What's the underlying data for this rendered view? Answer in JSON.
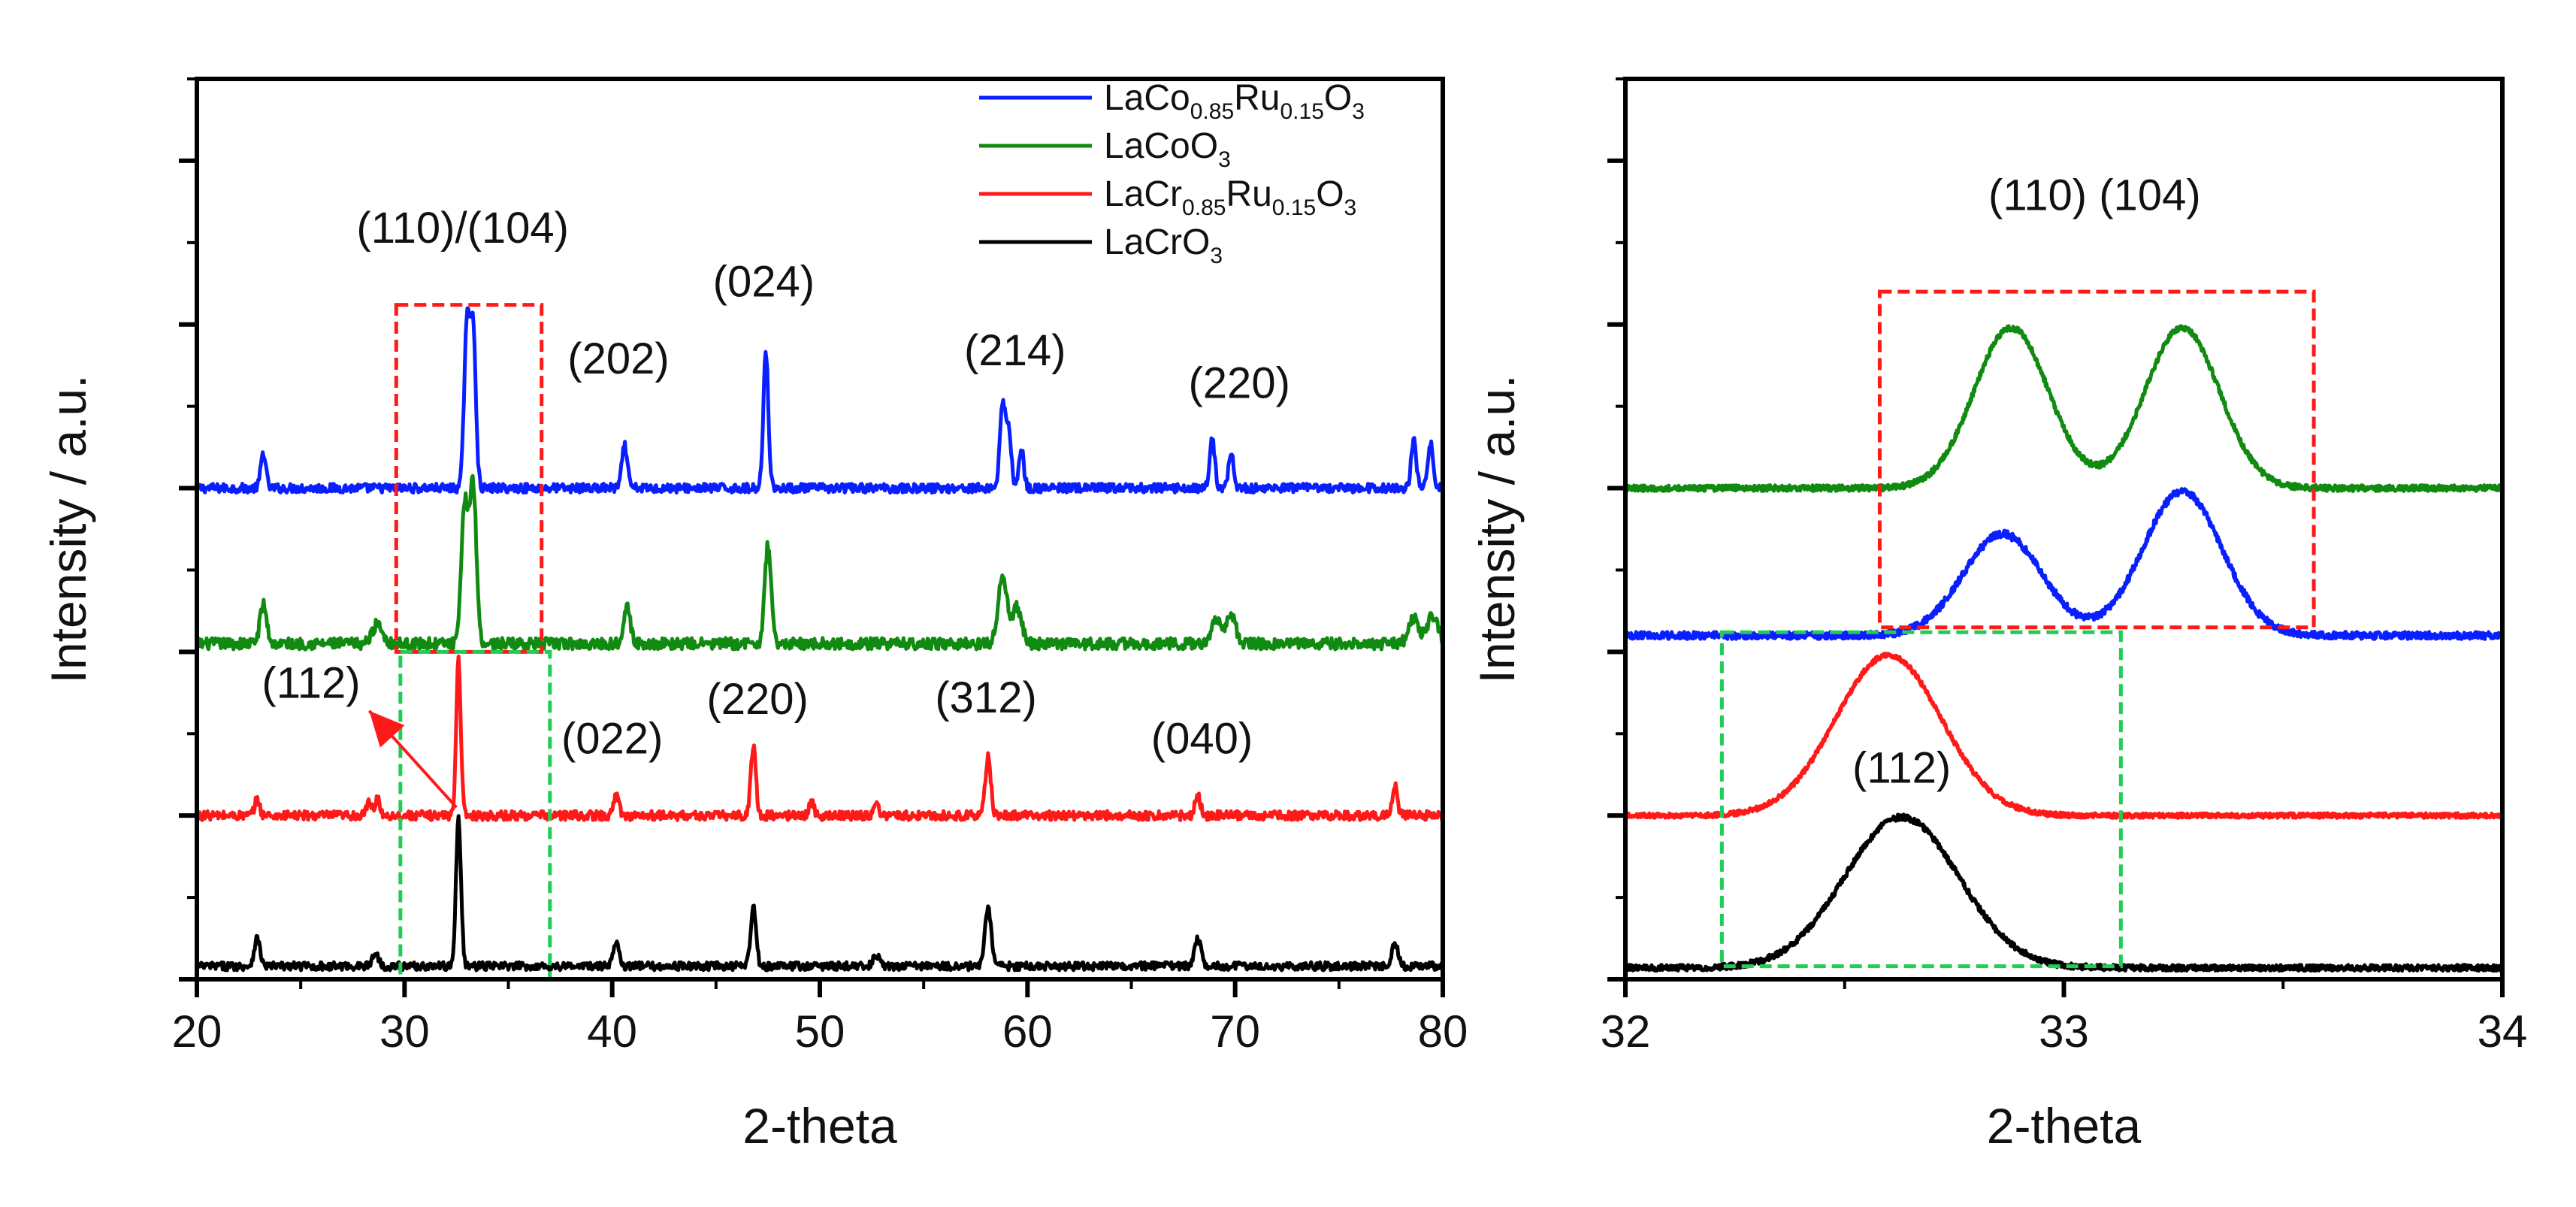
{
  "chart_data": [
    {
      "type": "line",
      "panel": "left",
      "xlabel": "2-theta",
      "ylabel": "Intensity / a.u.",
      "xlim": [
        20,
        80
      ],
      "x_ticks": [
        "20",
        "30",
        "40",
        "50",
        "60",
        "70",
        "80"
      ],
      "y_tick_labels": "none",
      "legend_location": "top-right",
      "legend": [
        {
          "series": "LaCo0.85Ru0.15O3",
          "parts": [
            "LaCo",
            "0.85",
            "Ru",
            "0.15",
            "O",
            "3"
          ],
          "color": "#0a1fff"
        },
        {
          "series": "LaCoO3",
          "parts": [
            "LaCoO",
            "3"
          ],
          "color": "#118a11"
        },
        {
          "series": "LaCr0.85Ru0.15O3",
          "parts": [
            "LaCr",
            "0.85",
            "Ru",
            "0.15",
            "O",
            "3"
          ],
          "color": "#ff1a1a"
        },
        {
          "series": "LaCrO3",
          "parts": [
            "LaCrO",
            "3"
          ],
          "color": "#000000"
        }
      ],
      "series": [
        {
          "name": "LaCo0.85Ru0.15O3",
          "color": "#0a1fff",
          "baseline": 3.0,
          "noise": 0.028,
          "peaks": [
            [
              23.2,
              0.22,
              0.12
            ],
            [
              33.0,
              1.0,
              0.13
            ],
            [
              33.3,
              1.0,
              0.13
            ],
            [
              40.6,
              0.26,
              0.13
            ],
            [
              47.4,
              0.84,
              0.12
            ],
            [
              58.8,
              0.52,
              0.13
            ],
            [
              59.1,
              0.36,
              0.12
            ],
            [
              59.7,
              0.24,
              0.12
            ],
            [
              68.9,
              0.3,
              0.12
            ],
            [
              69.8,
              0.22,
              0.12
            ],
            [
              78.6,
              0.3,
              0.12
            ],
            [
              79.4,
              0.28,
              0.12
            ]
          ]
        },
        {
          "name": "LaCoO3",
          "color": "#118a11",
          "baseline": 2.05,
          "noise": 0.035,
          "peaks": [
            [
              23.2,
              0.24,
              0.16
            ],
            [
              28.7,
              0.12,
              0.25
            ],
            [
              32.9,
              0.85,
              0.16
            ],
            [
              33.3,
              0.97,
              0.16
            ],
            [
              40.7,
              0.24,
              0.16
            ],
            [
              47.5,
              0.6,
              0.15
            ],
            [
              58.8,
              0.4,
              0.22
            ],
            [
              59.5,
              0.22,
              0.22
            ],
            [
              69.1,
              0.16,
              0.22
            ],
            [
              69.8,
              0.18,
              0.22
            ],
            [
              78.6,
              0.15,
              0.25
            ],
            [
              79.5,
              0.17,
              0.25
            ]
          ]
        },
        {
          "name": "LaCr0.85Ru0.15O3",
          "color": "#ff1a1a",
          "baseline": 1.0,
          "noise": 0.028,
          "peaks": [
            [
              22.9,
              0.1,
              0.12
            ],
            [
              28.3,
              0.08,
              0.12
            ],
            [
              28.7,
              0.1,
              0.12
            ],
            [
              32.6,
              0.96,
              0.11
            ],
            [
              40.2,
              0.12,
              0.13
            ],
            [
              46.8,
              0.43,
              0.12
            ],
            [
              49.6,
              0.08,
              0.12
            ],
            [
              52.7,
              0.08,
              0.12
            ],
            [
              58.1,
              0.36,
              0.13
            ],
            [
              68.2,
              0.12,
              0.13
            ],
            [
              77.7,
              0.18,
              0.12
            ]
          ]
        },
        {
          "name": "LaCrO3",
          "color": "#000000",
          "baseline": 0.08,
          "noise": 0.025,
          "peaks": [
            [
              22.9,
              0.17,
              0.14
            ],
            [
              28.6,
              0.08,
              0.15
            ],
            [
              32.6,
              0.9,
              0.12
            ],
            [
              40.2,
              0.16,
              0.14
            ],
            [
              46.8,
              0.36,
              0.13
            ],
            [
              52.7,
              0.07,
              0.15
            ],
            [
              58.1,
              0.36,
              0.15
            ],
            [
              68.2,
              0.17,
              0.15
            ],
            [
              77.7,
              0.15,
              0.14
            ]
          ]
        }
      ],
      "annotations": [
        {
          "text": "(110)/(104)",
          "x": 32.8,
          "y": 4.5
        },
        {
          "text": "(202)",
          "x": 40.3,
          "y": 3.7
        },
        {
          "text": "(024)",
          "x": 47.3,
          "y": 4.17
        },
        {
          "text": "(214)",
          "x": 59.4,
          "y": 3.75
        },
        {
          "text": "(220)",
          "x": 70.2,
          "y": 3.55
        },
        {
          "text": "(112)",
          "x": 25.5,
          "y": 1.72
        },
        {
          "text": "(022)",
          "x": 40.0,
          "y": 1.38
        },
        {
          "text": "(220)",
          "x": 47.0,
          "y": 1.62
        },
        {
          "text": "(312)",
          "x": 58.0,
          "y": 1.63
        },
        {
          "text": "(040)",
          "x": 68.4,
          "y": 1.38
        }
      ],
      "arrow": {
        "from": [
          32.5,
          1.05
        ],
        "to": [
          28.3,
          1.64
        ],
        "color": "#ff1a1a"
      },
      "highlight_boxes": [
        {
          "color": "#ff1a1a",
          "x": [
            29.6,
            36.6
          ],
          "y": [
            2.0,
            4.12
          ]
        },
        {
          "color": "#22cc55",
          "x": [
            29.8,
            37.0
          ],
          "y": [
            0.0,
            2.0
          ]
        }
      ]
    },
    {
      "type": "line",
      "panel": "right",
      "xlabel": "2-theta",
      "ylabel": "Intensity / a.u.",
      "xlim": [
        32,
        34
      ],
      "x_ticks": [
        "32",
        "33",
        "34"
      ],
      "y_tick_labels": "none",
      "series": [
        {
          "name": "LaCoO3",
          "color": "#118a11",
          "baseline": 3.0,
          "noise": 0.018,
          "peaks": [
            [
              32.88,
              0.98,
              0.085
            ],
            [
              33.27,
              0.98,
              0.085
            ]
          ]
        },
        {
          "name": "LaCo0.85Ru0.15O3",
          "color": "#0a1fff",
          "baseline": 2.1,
          "noise": 0.022,
          "peaks": [
            [
              32.86,
              0.62,
              0.09
            ],
            [
              33.27,
              0.88,
              0.09
            ]
          ]
        },
        {
          "name": "LaCr0.85Ru0.15O3",
          "color": "#ff1a1a",
          "baseline": 1.0,
          "noise": 0.015,
          "peaks": [
            [
              32.6,
              0.98,
              0.12
            ]
          ]
        },
        {
          "name": "LaCrO3",
          "color": "#000000",
          "baseline": 0.07,
          "noise": 0.018,
          "peaks": [
            [
              32.63,
              0.92,
              0.13
            ]
          ]
        }
      ],
      "annotations": [
        {
          "text": "(110) (104)",
          "x": 33.07,
          "y": 4.7
        },
        {
          "text": "(112)",
          "x": 32.63,
          "y": 1.2
        }
      ],
      "highlight_boxes": [
        {
          "color": "#ff1a1a",
          "x": [
            32.58,
            33.57
          ],
          "y": [
            2.15,
            4.2
          ]
        },
        {
          "color": "#22cc55",
          "x": [
            32.22,
            33.13
          ],
          "y": [
            0.08,
            2.12
          ]
        }
      ]
    }
  ]
}
